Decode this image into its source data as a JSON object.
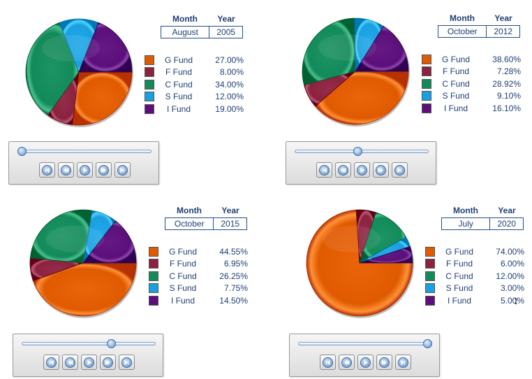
{
  "labels": {
    "month": "Month",
    "year": "Year"
  },
  "colors": {
    "G Fund": "#e05a00",
    "F Fund": "#8b2240",
    "C Fund": "#138a5a",
    "S Fund": "#1aa0e0",
    "I Fund": "#5a0f7a"
  },
  "chart_data": [
    {
      "type": "pie",
      "month": "August",
      "year": "2005",
      "series": [
        {
          "labels": [
            "G Fund",
            "F Fund",
            "C Fund",
            "S Fund",
            "I Fund"
          ],
          "values": [
            27.0,
            8.0,
            34.0,
            12.0,
            19.0
          ],
          "display": [
            "27.00%",
            "8.00%",
            "34.00%",
            "12.00%",
            "19.00%"
          ]
        }
      ],
      "slider_position": 0.0
    },
    {
      "type": "pie",
      "month": "October",
      "year": "2012",
      "series": [
        {
          "labels": [
            "G Fund",
            "F Fund",
            "C Fund",
            "S Fund",
            "I Fund"
          ],
          "values": [
            38.6,
            7.28,
            28.92,
            9.1,
            16.1
          ],
          "display": [
            "38.60%",
            "7.28%",
            "28.92%",
            "9.10%",
            "16.10%"
          ]
        }
      ],
      "slider_position": 0.47
    },
    {
      "type": "pie",
      "month": "October",
      "year": "2015",
      "series": [
        {
          "labels": [
            "G Fund",
            "F Fund",
            "C Fund",
            "S Fund",
            "I Fund"
          ],
          "values": [
            44.55,
            6.95,
            26.25,
            7.75,
            14.5
          ],
          "display": [
            "44.55%",
            "6.95%",
            "26.25%",
            "7.75%",
            "14.50%"
          ]
        }
      ],
      "slider_position": 0.68
    },
    {
      "type": "pie",
      "month": "July",
      "year": "2020",
      "series": [
        {
          "labels": [
            "G Fund",
            "F Fund",
            "C Fund",
            "S Fund",
            "I Fund"
          ],
          "values": [
            74.0,
            6.0,
            12.0,
            3.0,
            5.0
          ],
          "display": [
            "74.00%",
            "6.00%",
            "12.00%",
            "3.00%",
            "5.00%"
          ]
        }
      ],
      "slider_position": 1.0
    }
  ],
  "player_buttons": [
    "first-icon",
    "rewind-icon",
    "play-icon",
    "fast-forward-icon",
    "last-icon"
  ]
}
